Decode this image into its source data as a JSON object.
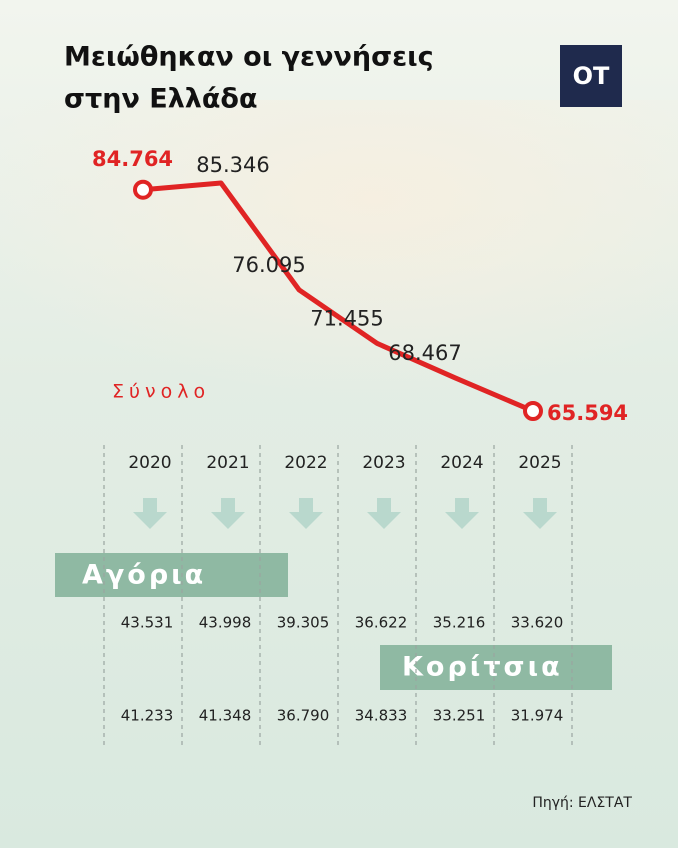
{
  "header": {
    "title_lines": [
      "Μειώθηκαν οι γεννήσεις",
      "στην Ελλάδα"
    ],
    "logo": "OT"
  },
  "chart_data": {
    "type": "line",
    "categories": [
      "2020",
      "2021",
      "2022",
      "2023",
      "2024",
      "2025"
    ],
    "series": [
      {
        "name": "Σύνολο",
        "color": "#e02424",
        "values": [
          84764,
          85346,
          76095,
          71455,
          68467,
          65594
        ],
        "value_labels": [
          "84.764",
          "85.346",
          "76.095",
          "71.455",
          "68.467",
          "65.594"
        ]
      }
    ]
  },
  "breakdown": {
    "boys_label": "Αγόρια",
    "boys": [
      "43.531",
      "43.998",
      "39.305",
      "36.622",
      "35.216",
      "33.620"
    ],
    "girls_label": "Κορίτσια",
    "girls": [
      "41.233",
      "41.348",
      "36.790",
      "34.833",
      "33.251",
      "31.974"
    ]
  },
  "source": "Πηγή: ΕΛΣΤΑΤ"
}
